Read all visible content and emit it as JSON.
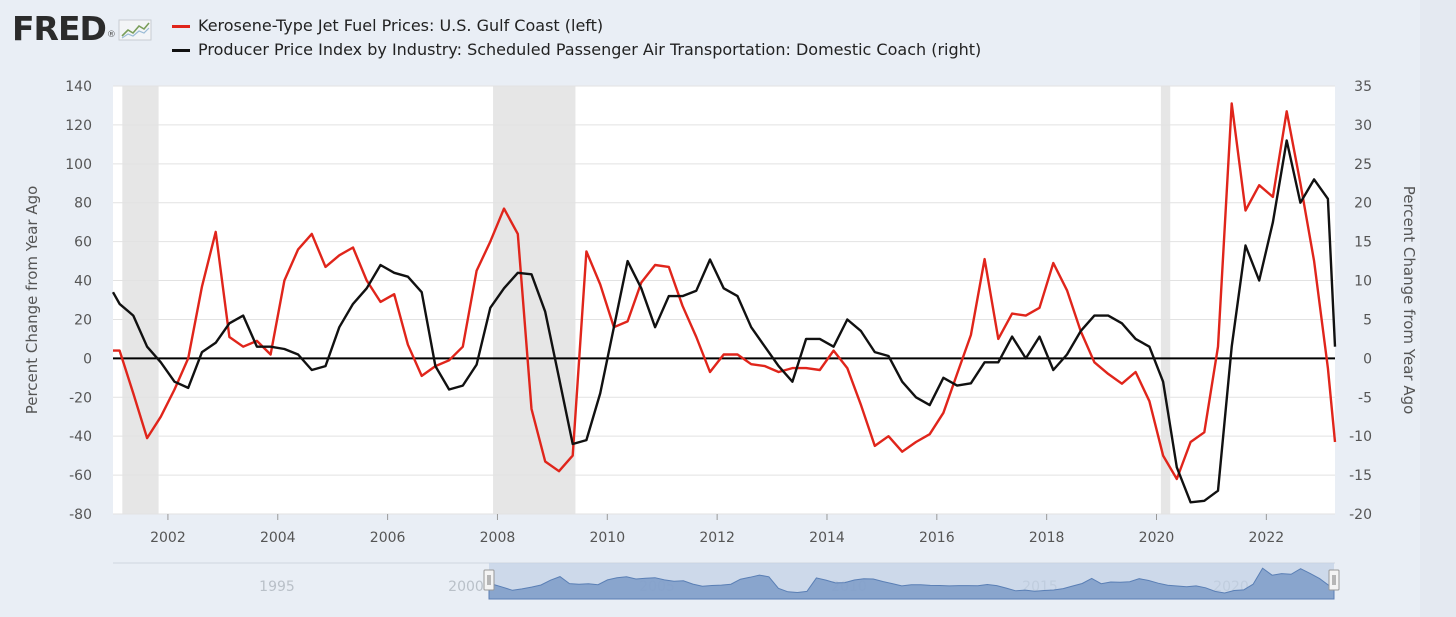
{
  "logo": {
    "text": "FRED",
    "mark": "®",
    "icon": "line-chart-icon"
  },
  "legend": [
    {
      "label": "Kerosene-Type Jet Fuel Prices: U.S. Gulf Coast (left)",
      "color": "#e0251b"
    },
    {
      "label": "Producer Price Index by Industry: Scheduled Passenger Air Transportation: Domestic Coach (right)",
      "color": "#111111"
    }
  ],
  "chart_data": {
    "type": "line",
    "xlabel": "",
    "ylabel_left": "Percent Change from Year Ago",
    "ylabel_right": "Percent Change from Year Ago",
    "xlim": [
      2001.0,
      2023.25
    ],
    "ylim_left": [
      -80,
      140
    ],
    "ylim_right": [
      -20,
      35
    ],
    "x_ticks": [
      "2002",
      "2004",
      "2006",
      "2008",
      "2010",
      "2012",
      "2014",
      "2016",
      "2018",
      "2020",
      "2022"
    ],
    "y_ticks_left": [
      "140",
      "120",
      "100",
      "80",
      "60",
      "40",
      "20",
      "0",
      "-20",
      "-40",
      "-60",
      "-80"
    ],
    "y_ticks_right": [
      "35",
      "30",
      "25",
      "20",
      "15",
      "10",
      "5",
      "0",
      "-5",
      "-10",
      "-15",
      "-20"
    ],
    "recessions": [
      [
        2001.17,
        2001.83
      ],
      [
        2007.92,
        2009.42
      ],
      [
        2020.08,
        2020.25
      ]
    ],
    "grid": "horizontal",
    "series": [
      {
        "name": "Kerosene-Type Jet Fuel Prices: U.S. Gulf Coast (left)",
        "axis": "left",
        "color": "#e0251b",
        "points": [
          [
            2001.0,
            4
          ],
          [
            2001.12,
            4
          ],
          [
            2001.37,
            -18
          ],
          [
            2001.62,
            -41
          ],
          [
            2001.87,
            -30
          ],
          [
            2002.12,
            -16
          ],
          [
            2002.37,
            0
          ],
          [
            2002.62,
            37
          ],
          [
            2002.87,
            65
          ],
          [
            2003.12,
            11
          ],
          [
            2003.37,
            6
          ],
          [
            2003.62,
            9
          ],
          [
            2003.87,
            2
          ],
          [
            2004.12,
            40
          ],
          [
            2004.37,
            56
          ],
          [
            2004.62,
            64
          ],
          [
            2004.87,
            47
          ],
          [
            2005.12,
            53
          ],
          [
            2005.37,
            57
          ],
          [
            2005.62,
            40
          ],
          [
            2005.87,
            29
          ],
          [
            2006.12,
            33
          ],
          [
            2006.37,
            7
          ],
          [
            2006.62,
            -9
          ],
          [
            2006.87,
            -4
          ],
          [
            2007.12,
            -1
          ],
          [
            2007.37,
            6
          ],
          [
            2007.62,
            45
          ],
          [
            2007.87,
            60
          ],
          [
            2008.12,
            77
          ],
          [
            2008.37,
            64
          ],
          [
            2008.62,
            -26
          ],
          [
            2008.87,
            -53
          ],
          [
            2009.12,
            -58
          ],
          [
            2009.37,
            -50
          ],
          [
            2009.62,
            55
          ],
          [
            2009.87,
            38
          ],
          [
            2010.12,
            16
          ],
          [
            2010.37,
            19
          ],
          [
            2010.62,
            39
          ],
          [
            2010.87,
            48
          ],
          [
            2011.12,
            47
          ],
          [
            2011.37,
            27
          ],
          [
            2011.62,
            11
          ],
          [
            2011.87,
            -7
          ],
          [
            2012.12,
            2
          ],
          [
            2012.37,
            2
          ],
          [
            2012.62,
            -3
          ],
          [
            2012.87,
            -4
          ],
          [
            2013.12,
            -7
          ],
          [
            2013.37,
            -5
          ],
          [
            2013.62,
            -5
          ],
          [
            2013.87,
            -6
          ],
          [
            2014.12,
            4
          ],
          [
            2014.37,
            -5
          ],
          [
            2014.62,
            -24
          ],
          [
            2014.87,
            -45
          ],
          [
            2015.12,
            -40
          ],
          [
            2015.37,
            -48
          ],
          [
            2015.62,
            -43
          ],
          [
            2015.87,
            -39
          ],
          [
            2016.12,
            -28
          ],
          [
            2016.37,
            -8
          ],
          [
            2016.62,
            12
          ],
          [
            2016.87,
            51
          ],
          [
            2017.12,
            10
          ],
          [
            2017.37,
            23
          ],
          [
            2017.62,
            22
          ],
          [
            2017.87,
            26
          ],
          [
            2018.12,
            49
          ],
          [
            2018.37,
            35
          ],
          [
            2018.62,
            14
          ],
          [
            2018.87,
            -2
          ],
          [
            2019.12,
            -8
          ],
          [
            2019.37,
            -13
          ],
          [
            2019.62,
            -7
          ],
          [
            2019.87,
            -22
          ],
          [
            2020.12,
            -50
          ],
          [
            2020.37,
            -62
          ],
          [
            2020.62,
            -43
          ],
          [
            2020.87,
            -38
          ],
          [
            2021.12,
            6
          ],
          [
            2021.37,
            131
          ],
          [
            2021.62,
            76
          ],
          [
            2021.87,
            89
          ],
          [
            2022.12,
            83
          ],
          [
            2022.37,
            127
          ],
          [
            2022.62,
            90
          ],
          [
            2022.87,
            50
          ],
          [
            2023.12,
            -5
          ],
          [
            2023.25,
            -43
          ]
        ]
      },
      {
        "name": "Producer Price Index by Industry: Scheduled Passenger Air Transportation: Domestic Coach (right)",
        "axis": "right",
        "color": "#111111",
        "points": [
          [
            2001.0,
            8.5
          ],
          [
            2001.12,
            7
          ],
          [
            2001.37,
            5.5
          ],
          [
            2001.62,
            1.5
          ],
          [
            2001.87,
            -0.5
          ],
          [
            2002.12,
            -3
          ],
          [
            2002.37,
            -3.8
          ],
          [
            2002.62,
            0.8
          ],
          [
            2002.87,
            2
          ],
          [
            2003.12,
            4.5
          ],
          [
            2003.37,
            5.5
          ],
          [
            2003.62,
            1.5
          ],
          [
            2003.87,
            1.5
          ],
          [
            2004.12,
            1.2
          ],
          [
            2004.37,
            0.5
          ],
          [
            2004.62,
            -1.5
          ],
          [
            2004.87,
            -1
          ],
          [
            2005.12,
            4
          ],
          [
            2005.37,
            7
          ],
          [
            2005.62,
            9
          ],
          [
            2005.87,
            12
          ],
          [
            2006.12,
            11
          ],
          [
            2006.37,
            10.5
          ],
          [
            2006.62,
            8.5
          ],
          [
            2006.87,
            -1
          ],
          [
            2007.12,
            -4
          ],
          [
            2007.37,
            -3.5
          ],
          [
            2007.62,
            -0.8
          ],
          [
            2007.87,
            6.5
          ],
          [
            2008.12,
            9
          ],
          [
            2008.37,
            11
          ],
          [
            2008.62,
            10.8
          ],
          [
            2008.87,
            6
          ],
          [
            2009.12,
            -2.5
          ],
          [
            2009.37,
            -11
          ],
          [
            2009.62,
            -10.5
          ],
          [
            2009.87,
            -4.5
          ],
          [
            2010.12,
            4
          ],
          [
            2010.37,
            12.5
          ],
          [
            2010.62,
            9
          ],
          [
            2010.87,
            4
          ],
          [
            2011.12,
            8
          ],
          [
            2011.37,
            8
          ],
          [
            2011.62,
            8.7
          ],
          [
            2011.87,
            12.7
          ],
          [
            2012.12,
            9
          ],
          [
            2012.37,
            8
          ],
          [
            2012.62,
            4
          ],
          [
            2012.87,
            1.5
          ],
          [
            2013.12,
            -1
          ],
          [
            2013.37,
            -3
          ],
          [
            2013.62,
            2.5
          ],
          [
            2013.87,
            2.5
          ],
          [
            2014.12,
            1.5
          ],
          [
            2014.37,
            5
          ],
          [
            2014.62,
            3.5
          ],
          [
            2014.87,
            0.8
          ],
          [
            2015.12,
            0.3
          ],
          [
            2015.37,
            -3
          ],
          [
            2015.62,
            -5
          ],
          [
            2015.87,
            -6
          ],
          [
            2016.12,
            -2.5
          ],
          [
            2016.37,
            -3.5
          ],
          [
            2016.62,
            -3.2
          ],
          [
            2016.87,
            -0.5
          ],
          [
            2017.12,
            -0.5
          ],
          [
            2017.37,
            2.8
          ],
          [
            2017.62,
            0
          ],
          [
            2017.87,
            2.8
          ],
          [
            2018.12,
            -1.5
          ],
          [
            2018.37,
            0.5
          ],
          [
            2018.62,
            3.5
          ],
          [
            2018.87,
            5.5
          ],
          [
            2019.12,
            5.5
          ],
          [
            2019.37,
            4.5
          ],
          [
            2019.62,
            2.5
          ],
          [
            2019.87,
            1.5
          ],
          [
            2020.12,
            -3
          ],
          [
            2020.37,
            -14
          ],
          [
            2020.62,
            -18.5
          ],
          [
            2020.87,
            -18.3
          ],
          [
            2021.12,
            -17
          ],
          [
            2021.37,
            1.5
          ],
          [
            2021.62,
            14.5
          ],
          [
            2021.87,
            10
          ],
          [
            2022.12,
            17.5
          ],
          [
            2022.37,
            28
          ],
          [
            2022.62,
            20
          ],
          [
            2022.87,
            23
          ],
          [
            2023.12,
            20.5
          ],
          [
            2023.25,
            1.5
          ]
        ]
      }
    ],
    "navigator": {
      "labels": [
        "1995",
        "2000",
        "2005",
        "2010",
        "2015",
        "2020"
      ]
    }
  }
}
